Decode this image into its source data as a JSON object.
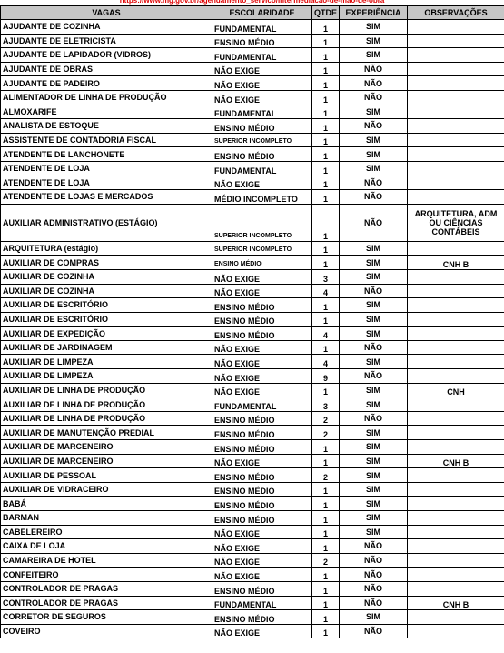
{
  "source_url": "https://www.mg.gov.br/agendamento_servico/intermediacao-de-mao-de-obra",
  "columns": [
    "VAGAS",
    "ESCOLARIDADE",
    "QTDE",
    "EXPERIÊNCIA",
    "OBSERVAÇÕES"
  ],
  "rows": [
    {
      "vaga": "AJUDANTE DE COZINHA",
      "escolaridade": "FUNDAMENTAL",
      "qtd": "1",
      "exp": "SIM",
      "obs": ""
    },
    {
      "vaga": "AJUDANTE DE ELETRICISTA",
      "escolaridade": "ENSINO MÉDIO",
      "qtd": "1",
      "exp": "SIM",
      "obs": ""
    },
    {
      "vaga": "AJUDANTE DE LAPIDADOR (VIDROS)",
      "escolaridade": "FUNDAMENTAL",
      "qtd": "1",
      "exp": "SIM",
      "obs": ""
    },
    {
      "vaga": "AJUDANTE DE OBRAS",
      "escolaridade": "NÃO EXIGE",
      "qtd": "1",
      "exp": "NÃO",
      "obs": ""
    },
    {
      "vaga": "AJUDANTE DE PADEIRO",
      "escolaridade": "NÃO EXIGE",
      "qtd": "1",
      "exp": "NÃO",
      "obs": ""
    },
    {
      "vaga": "ALIMENTADOR DE LINHA DE PRODUÇÃO",
      "escolaridade": "NÃO EXIGE",
      "qtd": "1",
      "exp": "NÃO",
      "obs": ""
    },
    {
      "vaga": "ALMOXARIFE",
      "escolaridade": "FUNDAMENTAL",
      "qtd": "1",
      "exp": "SIM",
      "obs": ""
    },
    {
      "vaga": "ANALISTA DE ESTOQUE",
      "escolaridade": "ENSINO MÉDIO",
      "qtd": "1",
      "exp": "NÃO",
      "obs": ""
    },
    {
      "vaga": "ASSISTENTE DE CONTADORIA FISCAL",
      "escolaridade": "SUPERIOR INCOMPLETO",
      "qtd": "1",
      "exp": "SIM",
      "obs": "",
      "small": true
    },
    {
      "vaga": "ATENDENTE DE LANCHONETE",
      "escolaridade": "ENSINO MÉDIO",
      "qtd": "1",
      "exp": "SIM",
      "obs": ""
    },
    {
      "vaga": "ATENDENTE DE LOJA",
      "escolaridade": "FUNDAMENTAL",
      "qtd": "1",
      "exp": "SIM",
      "obs": ""
    },
    {
      "vaga": "ATENDENTE DE LOJA",
      "escolaridade": "NÃO EXIGE",
      "qtd": "1",
      "exp": "NÃO",
      "obs": ""
    },
    {
      "vaga": "ATENDENTE DE LOJAS E MERCADOS",
      "escolaridade": "MÉDIO INCOMPLETO",
      "qtd": "1",
      "exp": "NÃO",
      "obs": ""
    },
    {
      "vaga": "AUXILIAR ADMINISTRATIVO (ESTÁGIO)",
      "escolaridade": "SUPERIOR INCOMPLETO",
      "qtd": "1",
      "exp": "NÃO",
      "obs": "ARQUITETURA, ADM OU CIÊNCIAS CONTÁBEIS",
      "small": true,
      "tall": true
    },
    {
      "vaga": " ARQUITETURA (estágio)",
      "escolaridade": "SUPERIOR INCOMPLETO",
      "qtd": "1",
      "exp": "SIM",
      "obs": "",
      "small": true
    },
    {
      "vaga": "AUXILIAR DE COMPRAS",
      "escolaridade": "ENSINO MÉDIO",
      "qtd": "1",
      "exp": "SIM",
      "obs": "CNH B",
      "small": true
    },
    {
      "vaga": "AUXILIAR DE COZINHA",
      "escolaridade": "NÃO EXIGE",
      "qtd": "3",
      "exp": "SIM",
      "obs": ""
    },
    {
      "vaga": "AUXILIAR DE COZINHA",
      "escolaridade": "NÃO EXIGE",
      "qtd": "4",
      "exp": "NÃO",
      "obs": ""
    },
    {
      "vaga": "AUXILIAR DE ESCRITÓRIO",
      "escolaridade": "ENSINO MÉDIO",
      "qtd": "1",
      "exp": "SIM",
      "obs": ""
    },
    {
      "vaga": "AUXILIAR DE ESCRITÓRIO",
      "escolaridade": "ENSINO MÉDIO",
      "qtd": "1",
      "exp": "SIM",
      "obs": ""
    },
    {
      "vaga": "AUXILIAR DE EXPEDIÇÃO",
      "escolaridade": "ENSINO MÉDIO",
      "qtd": "4",
      "exp": "SIM",
      "obs": ""
    },
    {
      "vaga": "AUXILIAR DE JARDINAGEM",
      "escolaridade": "NÃO EXIGE",
      "qtd": "1",
      "exp": "NÃO",
      "obs": ""
    },
    {
      "vaga": "AUXILIAR DE LIMPEZA",
      "escolaridade": "NÃO EXIGE",
      "qtd": "4",
      "exp": "SIM",
      "obs": ""
    },
    {
      "vaga": "AUXILIAR DE LIMPEZA",
      "escolaridade": "NÃO EXIGE",
      "qtd": "9",
      "exp": "NÃO",
      "obs": ""
    },
    {
      "vaga": "AUXILIAR DE LINHA DE PRODUÇÃO",
      "escolaridade": "NÃO EXIGE",
      "qtd": "1",
      "exp": "SIM",
      "obs": "CNH"
    },
    {
      "vaga": "AUXILIAR DE LINHA DE PRODUÇÃO",
      "escolaridade": "FUNDAMENTAL",
      "qtd": "3",
      "exp": "SIM",
      "obs": ""
    },
    {
      "vaga": "AUXILIAR DE LINHA DE PRODUÇÃO",
      "escolaridade": "ENSINO MÉDIO",
      "qtd": "2",
      "exp": "NÃO",
      "obs": ""
    },
    {
      "vaga": "AUXILIAR DE MANUTENÇÃO PREDIAL",
      "escolaridade": "ENSINO MÉDIO",
      "qtd": "2",
      "exp": "SIM",
      "obs": ""
    },
    {
      "vaga": "AUXILIAR DE MARCENEIRO",
      "escolaridade": "ENSINO MÉDIO",
      "qtd": "1",
      "exp": "SIM",
      "obs": ""
    },
    {
      "vaga": "AUXILIAR DE MARCENEIRO",
      "escolaridade": "NÃO EXIGE",
      "qtd": "1",
      "exp": "SIM",
      "obs": "CNH B"
    },
    {
      "vaga": "AUXILIAR DE PESSOAL",
      "escolaridade": "ENSINO MÉDIO",
      "qtd": "2",
      "exp": "SIM",
      "obs": ""
    },
    {
      "vaga": "AUXILIAR DE VIDRACEIRO",
      "escolaridade": "ENSINO MÉDIO",
      "qtd": "1",
      "exp": "SIM",
      "obs": ""
    },
    {
      "vaga": "BABÁ",
      "escolaridade": "ENSINO MÉDIO",
      "qtd": "1",
      "exp": "SIM",
      "obs": ""
    },
    {
      "vaga": "BARMAN",
      "escolaridade": "ENSINO MÉDIO",
      "qtd": "1",
      "exp": "SIM",
      "obs": ""
    },
    {
      "vaga": "CABELEREIRO",
      "escolaridade": "NÃO EXIGE",
      "qtd": "1",
      "exp": "SIM",
      "obs": ""
    },
    {
      "vaga": "CAIXA DE LOJA",
      "escolaridade": "NÃO EXIGE",
      "qtd": "1",
      "exp": "NÃO",
      "obs": ""
    },
    {
      "vaga": "CAMAREIRA DE HOTEL",
      "escolaridade": "NÃO EXIGE",
      "qtd": "2",
      "exp": "NÃO",
      "obs": ""
    },
    {
      "vaga": "CONFEITEIRO",
      "escolaridade": "NÃO EXIGE",
      "qtd": "1",
      "exp": "NÃO",
      "obs": ""
    },
    {
      "vaga": "CONTROLADOR DE PRAGAS",
      "escolaridade": "ENSINO MÉDIO",
      "qtd": "1",
      "exp": "NÃO",
      "obs": ""
    },
    {
      "vaga": "CONTROLADOR DE PRAGAS",
      "escolaridade": "FUNDAMENTAL",
      "qtd": "1",
      "exp": "NÃO",
      "obs": "CNH B"
    },
    {
      "vaga": "CORRETOR DE SEGUROS",
      "escolaridade": "ENSINO MÉDIO",
      "qtd": "1",
      "exp": "SIM",
      "obs": ""
    },
    {
      "vaga": "COVEIRO",
      "escolaridade": "NÃO EXIGE",
      "qtd": "1",
      "exp": "NÃO",
      "obs": ""
    }
  ]
}
